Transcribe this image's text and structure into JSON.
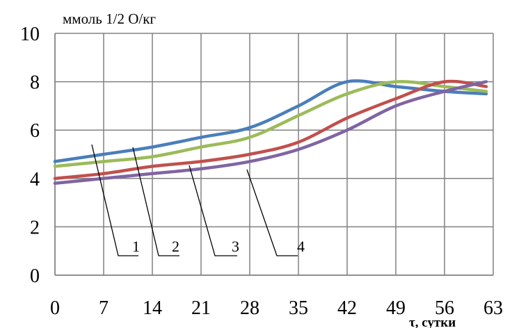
{
  "chart_data": {
    "type": "line",
    "ylabel": "ммоль 1/2 О/кг",
    "xlabel": "τ, сутки",
    "x_ticks": [
      "0",
      "7",
      "14",
      "21",
      "28",
      "35",
      "42",
      "49",
      "56",
      "63"
    ],
    "y_ticks": [
      "0",
      "2",
      "4",
      "6",
      "8",
      "10"
    ],
    "xlim": [
      0,
      63
    ],
    "ylim": [
      0,
      10
    ],
    "grid": true,
    "series": [
      {
        "name": "1",
        "color": "#4a7ebb",
        "x": [
          0,
          7,
          14,
          21,
          28,
          35,
          42,
          49,
          56,
          62
        ],
        "y": [
          4.7,
          5.0,
          5.3,
          5.7,
          6.1,
          7.0,
          8.0,
          7.8,
          7.6,
          7.5
        ]
      },
      {
        "name": "2",
        "color": "#9bbb59",
        "x": [
          0,
          7,
          14,
          21,
          28,
          35,
          42,
          49,
          56,
          62
        ],
        "y": [
          4.5,
          4.7,
          4.9,
          5.3,
          5.7,
          6.6,
          7.5,
          8.0,
          7.8,
          7.6
        ]
      },
      {
        "name": "3",
        "color": "#c0504d",
        "x": [
          0,
          7,
          14,
          21,
          28,
          35,
          42,
          49,
          56,
          62
        ],
        "y": [
          4.0,
          4.2,
          4.5,
          4.7,
          5.0,
          5.5,
          6.5,
          7.3,
          8.0,
          7.8
        ]
      },
      {
        "name": "4",
        "color": "#8064a2",
        "x": [
          0,
          7,
          14,
          21,
          28,
          35,
          42,
          49,
          56,
          62
        ],
        "y": [
          3.8,
          4.0,
          4.2,
          4.4,
          4.7,
          5.2,
          6.0,
          7.0,
          7.6,
          8.0
        ]
      }
    ]
  }
}
